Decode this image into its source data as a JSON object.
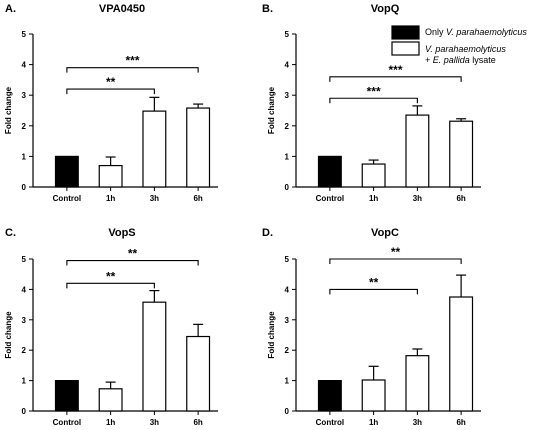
{
  "legend": {
    "entries": [
      {
        "key": "control",
        "color": "#000000",
        "parts": [
          {
            "t": "Only ",
            "i": false
          },
          {
            "t": "V. parahaemolyticus",
            "i": true
          }
        ]
      },
      {
        "key": "treated",
        "color": "#ffffff",
        "parts": [
          {
            "t": "V. parahaemolyticus",
            "i": true
          }
        ],
        "line2": [
          {
            "t": "+ ",
            "i": false
          },
          {
            "t": "E. pallida",
            "i": true
          },
          {
            "t": " lysate",
            "i": false
          }
        ]
      }
    ]
  },
  "chart_data": [
    {
      "panel": "A.",
      "type": "bar",
      "title": "VPA0450",
      "ylabel": "Fold change",
      "categories": [
        "Control",
        "1h",
        "3h",
        "6h"
      ],
      "values": [
        1.0,
        0.7,
        2.48,
        2.58
      ],
      "errors": [
        0,
        0.28,
        0.45,
        0.13
      ],
      "colors": [
        "#000000",
        "#ffffff",
        "#ffffff",
        "#ffffff"
      ],
      "ylim": [
        0,
        5
      ],
      "yticks": [
        0,
        1,
        2,
        3,
        4,
        5
      ],
      "significance": [
        {
          "from": 0,
          "to": 2,
          "y": 3.2,
          "label": "**"
        },
        {
          "from": 0,
          "to": 3,
          "y": 3.9,
          "label": "***"
        }
      ]
    },
    {
      "panel": "B.",
      "type": "bar",
      "title": "VopQ",
      "ylabel": "Fold change",
      "categories": [
        "Control",
        "1h",
        "3h",
        "6h"
      ],
      "values": [
        1.0,
        0.75,
        2.35,
        2.15
      ],
      "errors": [
        0,
        0.13,
        0.3,
        0.08
      ],
      "colors": [
        "#000000",
        "#ffffff",
        "#ffffff",
        "#ffffff"
      ],
      "ylim": [
        0,
        5
      ],
      "yticks": [
        0,
        1,
        2,
        3,
        4,
        5
      ],
      "significance": [
        {
          "from": 0,
          "to": 2,
          "y": 2.9,
          "label": "***"
        },
        {
          "from": 0,
          "to": 3,
          "y": 3.6,
          "label": "***"
        }
      ]
    },
    {
      "panel": "C.",
      "type": "bar",
      "title": "VopS",
      "ylabel": "Fold change",
      "categories": [
        "Control",
        "1h",
        "3h",
        "6h"
      ],
      "values": [
        1.0,
        0.73,
        3.58,
        2.45
      ],
      "errors": [
        0,
        0.22,
        0.38,
        0.4
      ],
      "colors": [
        "#000000",
        "#ffffff",
        "#ffffff",
        "#ffffff"
      ],
      "ylim": [
        0,
        5
      ],
      "yticks": [
        0,
        1,
        2,
        3,
        4,
        5
      ],
      "significance": [
        {
          "from": 0,
          "to": 2,
          "y": 4.2,
          "label": "**"
        },
        {
          "from": 0,
          "to": 3,
          "y": 4.95,
          "label": "**"
        }
      ]
    },
    {
      "panel": "D.",
      "type": "bar",
      "title": "VopC",
      "ylabel": "Fold change",
      "categories": [
        "Control",
        "1h",
        "3h",
        "6h"
      ],
      "values": [
        1.0,
        1.02,
        1.82,
        3.75
      ],
      "errors": [
        0,
        0.45,
        0.22,
        0.72
      ],
      "colors": [
        "#000000",
        "#ffffff",
        "#ffffff",
        "#ffffff"
      ],
      "ylim": [
        0,
        5
      ],
      "yticks": [
        0,
        1,
        2,
        3,
        4,
        5
      ],
      "significance": [
        {
          "from": 0,
          "to": 2,
          "y": 4.0,
          "label": "**"
        },
        {
          "from": 0,
          "to": 3,
          "y": 5.0,
          "label": "**"
        }
      ]
    }
  ]
}
